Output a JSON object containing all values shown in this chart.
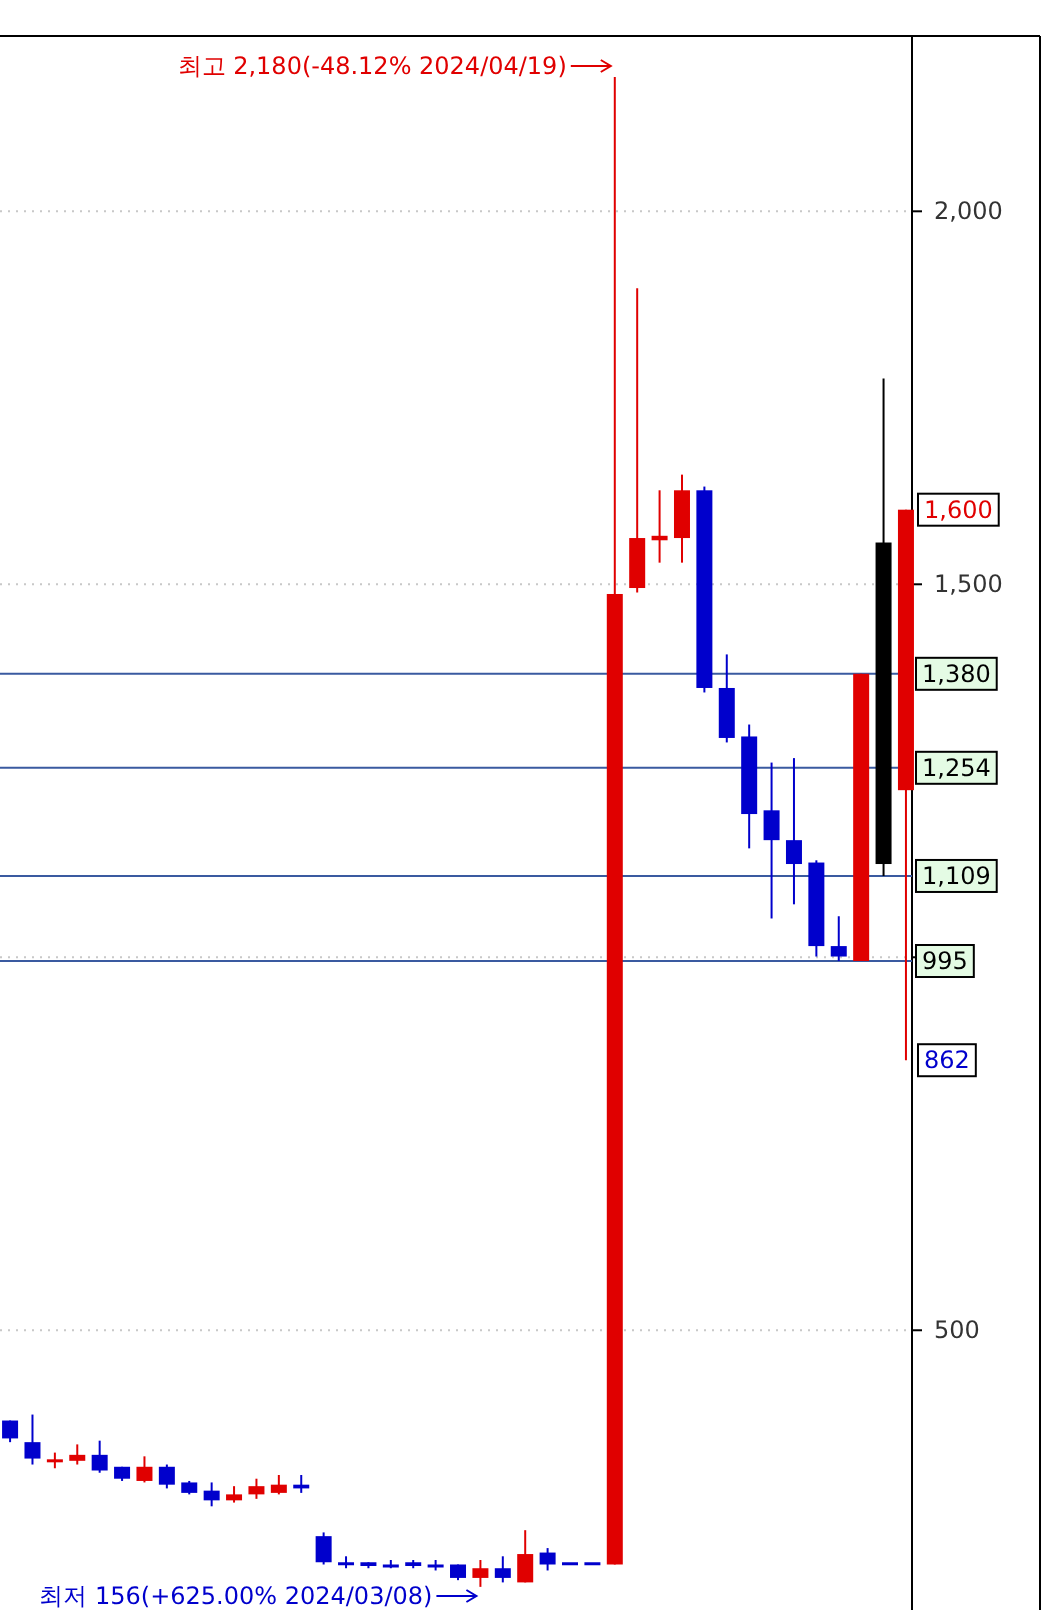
{
  "chart_data": {
    "type": "candlestick",
    "categories": [
      null,
      null,
      null,
      null,
      null,
      null,
      null,
      null,
      null,
      null,
      null,
      null,
      null,
      null,
      null,
      null,
      null,
      null,
      null,
      null,
      null,
      null,
      null,
      null,
      null,
      null,
      null,
      null,
      null,
      null,
      null,
      null,
      null,
      null,
      null,
      null,
      null,
      null,
      null,
      null,
      null
    ],
    "ohlc": [
      [
        379,
        379,
        350,
        355
      ],
      [
        350,
        387,
        320,
        328
      ],
      [
        327,
        336,
        315,
        327
      ],
      [
        325,
        347,
        320,
        333
      ],
      [
        333,
        352,
        309,
        312
      ],
      [
        317,
        317,
        298,
        301
      ],
      [
        298,
        331,
        296,
        317
      ],
      [
        317,
        320,
        288,
        293
      ],
      [
        296,
        298,
        280,
        282
      ],
      [
        285,
        296,
        264,
        272
      ],
      [
        272,
        291,
        269,
        280
      ],
      [
        280,
        301,
        274,
        291
      ],
      [
        282,
        306,
        280,
        293
      ],
      [
        293,
        306,
        282,
        288
      ],
      [
        224,
        229,
        186,
        189
      ],
      [
        189,
        197,
        181,
        189
      ],
      [
        189,
        189,
        181,
        184
      ],
      [
        186,
        192,
        181,
        186
      ],
      [
        189,
        192,
        181,
        184
      ],
      [
        186,
        192,
        178,
        186
      ],
      [
        186,
        186,
        165,
        168
      ],
      [
        168,
        192,
        156,
        181
      ],
      [
        181,
        197,
        162,
        168
      ],
      [
        162,
        232,
        162,
        200
      ],
      [
        202,
        208,
        178,
        186
      ],
      [
        189,
        189,
        189,
        189
      ],
      [
        189,
        189,
        189,
        189
      ],
      [
        186,
        2180,
        186,
        1487
      ],
      [
        1495,
        1897,
        1489,
        1562
      ],
      [
        1559,
        1626,
        1529,
        1565
      ],
      [
        1562,
        1647,
        1529,
        1626
      ],
      [
        1626,
        1631,
        1355,
        1361
      ],
      [
        1361,
        1406,
        1288,
        1294
      ],
      [
        1296,
        1312,
        1146,
        1192
      ],
      [
        1197,
        1261,
        1052,
        1157
      ],
      [
        1157,
        1267,
        1071,
        1125
      ],
      [
        1127,
        1130,
        1001,
        1015
      ],
      [
        1015,
        1055,
        995,
        1001
      ],
      [
        995,
        1380,
        995,
        1380
      ],
      [
        1125,
        1776,
        1109,
        1556
      ],
      [
        1224,
        1600,
        862,
        1600
      ]
    ],
    "colors": [
      "#0000cc",
      "#0000cc",
      "#e00000",
      "#e00000",
      "#0000cc",
      "#0000cc",
      "#e00000",
      "#0000cc",
      "#0000cc",
      "#0000cc",
      "#e00000",
      "#e00000",
      "#e00000",
      "#0000cc",
      "#0000cc",
      "#0000cc",
      "#0000cc",
      "#0000cc",
      "#0000cc",
      "#0000cc",
      "#0000cc",
      "#e00000",
      "#0000cc",
      "#e00000",
      "#0000cc",
      "#0000cc",
      "#0000cc",
      "#e00000",
      "#e00000",
      "#e00000",
      "#e00000",
      "#0000cc",
      "#0000cc",
      "#0000cc",
      "#0000cc",
      "#0000cc",
      "#0000cc",
      "#0000cc",
      "#e00000",
      "#000000",
      "#e00000"
    ],
    "ylim": [
      125,
      2235
    ],
    "yticks": [
      {
        "value": 500,
        "label": "500"
      },
      {
        "value": 1000,
        "label": null
      },
      {
        "value": 1500,
        "label": "1,500"
      },
      {
        "value": 2000,
        "label": "2,000"
      }
    ],
    "tick_labels": "y",
    "grid": "y",
    "ref_lines": [
      {
        "axis": "y",
        "value": 1380,
        "label": "1,380",
        "color": "#3a5aa0"
      },
      {
        "axis": "y",
        "value": 1254,
        "label": "1,254",
        "color": "#3a5aa0"
      },
      {
        "axis": "y",
        "value": 1109,
        "label": "1,109",
        "color": "#3a5aa0"
      },
      {
        "axis": "y",
        "value": 995,
        "label": "995",
        "color": "#3a5aa0"
      }
    ],
    "annotations": [
      "최고 2,180(-48.12% 2024/04/19)",
      "최저 156(+625.00% 2024/03/08)",
      {
        "text": "1,600",
        "y": 1600
      },
      {
        "text": "862",
        "y": 862
      }
    ]
  }
}
